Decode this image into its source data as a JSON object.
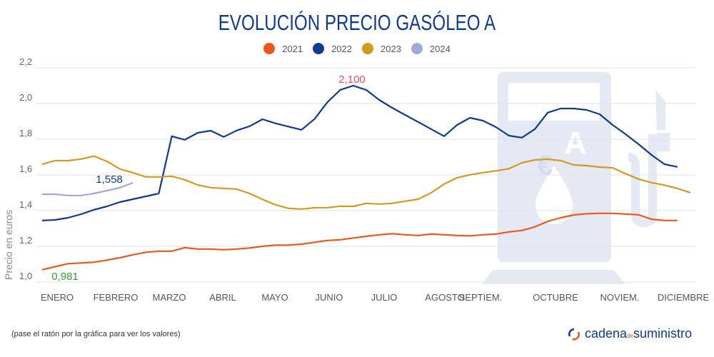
{
  "chart_data": {
    "type": "line",
    "title": "EVOLUCIÓN PRECIO GASÓLEO A",
    "ylabel": "Precio en euros",
    "xlabel": "",
    "ylim": [
      1.0,
      2.2
    ],
    "yticks": [
      "1,0",
      "1,2",
      "1,4",
      "1,6",
      "1,8",
      "2,0",
      "2,2"
    ],
    "ytick_values": [
      1.0,
      1.2,
      1.4,
      1.6,
      1.8,
      2.0,
      2.2
    ],
    "x_tick_labels": [
      "ENERO",
      "FEBRERO",
      "MARZO",
      "ABRIL",
      "MAYO",
      "JUNIO",
      "JULIO",
      "AGOSTO",
      "SEPTIEM.",
      "OCTUBRE",
      "NOVIEM.",
      "DICIEMBRE"
    ],
    "x_unit": "week of year",
    "grid": true,
    "legend_position": "top",
    "series": [
      {
        "name": "2021",
        "color": "#f0561c",
        "values": [
          1.069,
          1.086,
          1.103,
          1.107,
          1.111,
          1.123,
          1.136,
          1.153,
          1.167,
          1.173,
          1.173,
          1.193,
          1.185,
          1.185,
          1.181,
          1.185,
          1.191,
          1.2,
          1.207,
          1.207,
          1.212,
          1.223,
          1.233,
          1.237,
          1.247,
          1.256,
          1.265,
          1.271,
          1.265,
          1.261,
          1.269,
          1.265,
          1.261,
          1.259,
          1.265,
          1.269,
          1.281,
          1.289,
          1.309,
          1.34,
          1.36,
          1.376,
          1.383,
          1.385,
          1.385,
          1.381,
          1.377,
          1.352,
          1.345,
          1.345
        ]
      },
      {
        "name": "2022",
        "color": "#0f3a92",
        "values": [
          1.345,
          1.348,
          1.36,
          1.38,
          1.405,
          1.424,
          1.448,
          1.464,
          1.48,
          1.496,
          1.817,
          1.797,
          1.836,
          1.848,
          1.813,
          1.849,
          1.873,
          1.912,
          1.889,
          1.871,
          1.853,
          1.913,
          2.007,
          2.077,
          2.1,
          2.076,
          2.02,
          1.976,
          1.936,
          1.897,
          1.857,
          1.817,
          1.88,
          1.92,
          1.904,
          1.868,
          1.82,
          1.809,
          1.857,
          1.949,
          1.972,
          1.972,
          1.964,
          1.94,
          1.88,
          1.828,
          1.772,
          1.712,
          1.66,
          1.645
        ]
      },
      {
        "name": "2023",
        "color": "#d39a1f",
        "values": [
          1.66,
          1.68,
          1.68,
          1.689,
          1.705,
          1.676,
          1.633,
          1.613,
          1.589,
          1.589,
          1.593,
          1.573,
          1.544,
          1.529,
          1.525,
          1.521,
          1.496,
          1.463,
          1.433,
          1.413,
          1.409,
          1.416,
          1.417,
          1.425,
          1.424,
          1.441,
          1.437,
          1.441,
          1.453,
          1.464,
          1.5,
          1.549,
          1.584,
          1.601,
          1.613,
          1.623,
          1.635,
          1.668,
          1.684,
          1.688,
          1.68,
          1.656,
          1.652,
          1.644,
          1.64,
          1.607,
          1.577,
          1.557,
          1.543,
          1.524,
          1.501
        ]
      },
      {
        "name": "2024",
        "color": "#9eaad6",
        "values": [
          1.492,
          1.492,
          1.485,
          1.485,
          1.496,
          1.512,
          1.529,
          1.556
        ]
      }
    ],
    "annotations": [
      {
        "text": "2,100",
        "color": "#e05260",
        "series": "2022"
      },
      {
        "text": "1,558",
        "color": "#0f3a92",
        "series": "2024"
      },
      {
        "text": "0,981",
        "color": "#2ea12e",
        "series": "2021"
      }
    ]
  },
  "footer": {
    "hint": "(pase el ratón por la gráfica para ver los valores)"
  },
  "logo": {
    "text_a": "cadena",
    "text_de": "de",
    "text_b": "suministro"
  }
}
